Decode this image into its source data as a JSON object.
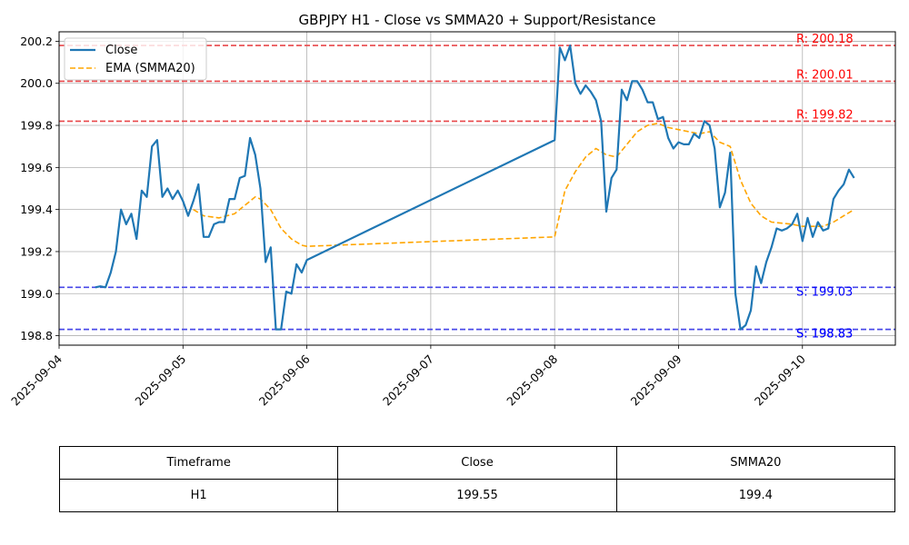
{
  "chart_data": {
    "type": "line",
    "title": "GBPJPY H1 - Close vs SMMA20 + Support/Resistance",
    "xlabel": "",
    "ylabel": "",
    "x_ticks": [
      "2025-09-04",
      "2025-09-05",
      "2025-09-06",
      "2025-09-07",
      "2025-09-08",
      "2025-09-09",
      "2025-09-10"
    ],
    "y_ticks": [
      "198.8",
      "199.0",
      "199.2",
      "199.4",
      "199.6",
      "199.8",
      "200.0",
      "200.2"
    ],
    "xlim": [
      "2025-09-04 00:00",
      "2025-09-10 18:00"
    ],
    "ylim": [
      198.755,
      200.245
    ],
    "grid": true,
    "legend_position": "upper-left",
    "series": [
      {
        "name": "Close",
        "color": "#1f77b4",
        "style": "solid",
        "points": [
          [
            "2025-09-04 07:00",
            199.03
          ],
          [
            "2025-09-04 08:00",
            199.035
          ],
          [
            "2025-09-04 09:00",
            199.03
          ],
          [
            "2025-09-04 10:00",
            199.1
          ],
          [
            "2025-09-04 11:00",
            199.2
          ],
          [
            "2025-09-04 12:00",
            199.4
          ],
          [
            "2025-09-04 13:00",
            199.33
          ],
          [
            "2025-09-04 14:00",
            199.38
          ],
          [
            "2025-09-04 15:00",
            199.26
          ],
          [
            "2025-09-04 16:00",
            199.49
          ],
          [
            "2025-09-04 17:00",
            199.46
          ],
          [
            "2025-09-04 18:00",
            199.7
          ],
          [
            "2025-09-04 19:00",
            199.73
          ],
          [
            "2025-09-04 20:00",
            199.46
          ],
          [
            "2025-09-04 21:00",
            199.5
          ],
          [
            "2025-09-04 22:00",
            199.45
          ],
          [
            "2025-09-04 23:00",
            199.49
          ],
          [
            "2025-09-05 00:00",
            199.44
          ],
          [
            "2025-09-05 01:00",
            199.37
          ],
          [
            "2025-09-05 02:00",
            199.44
          ],
          [
            "2025-09-05 03:00",
            199.52
          ],
          [
            "2025-09-05 04:00",
            199.27
          ],
          [
            "2025-09-05 05:00",
            199.27
          ],
          [
            "2025-09-05 06:00",
            199.33
          ],
          [
            "2025-09-05 07:00",
            199.34
          ],
          [
            "2025-09-05 08:00",
            199.34
          ],
          [
            "2025-09-05 09:00",
            199.45
          ],
          [
            "2025-09-05 10:00",
            199.45
          ],
          [
            "2025-09-05 11:00",
            199.55
          ],
          [
            "2025-09-05 12:00",
            199.56
          ],
          [
            "2025-09-05 13:00",
            199.74
          ],
          [
            "2025-09-05 14:00",
            199.66
          ],
          [
            "2025-09-05 15:00",
            199.5
          ],
          [
            "2025-09-05 16:00",
            199.15
          ],
          [
            "2025-09-05 17:00",
            199.22
          ],
          [
            "2025-09-05 18:00",
            198.83
          ],
          [
            "2025-09-05 19:00",
            198.83
          ],
          [
            "2025-09-05 20:00",
            199.01
          ],
          [
            "2025-09-05 21:00",
            199.0
          ],
          [
            "2025-09-05 22:00",
            199.14
          ],
          [
            "2025-09-05 23:00",
            199.1
          ],
          [
            "2025-09-06 00:00",
            199.16
          ],
          [
            "2025-09-08 00:00",
            199.73
          ],
          [
            "2025-09-08 01:00",
            200.17
          ],
          [
            "2025-09-08 02:00",
            200.11
          ],
          [
            "2025-09-08 03:00",
            200.18
          ],
          [
            "2025-09-08 04:00",
            200.0
          ],
          [
            "2025-09-08 05:00",
            199.95
          ],
          [
            "2025-09-08 06:00",
            199.99
          ],
          [
            "2025-09-08 07:00",
            199.96
          ],
          [
            "2025-09-08 08:00",
            199.92
          ],
          [
            "2025-09-08 09:00",
            199.82
          ],
          [
            "2025-09-08 10:00",
            199.39
          ],
          [
            "2025-09-08 11:00",
            199.55
          ],
          [
            "2025-09-08 12:00",
            199.59
          ],
          [
            "2025-09-08 13:00",
            199.97
          ],
          [
            "2025-09-08 14:00",
            199.92
          ],
          [
            "2025-09-08 15:00",
            200.01
          ],
          [
            "2025-09-08 16:00",
            200.01
          ],
          [
            "2025-09-08 17:00",
            199.97
          ],
          [
            "2025-09-08 18:00",
            199.91
          ],
          [
            "2025-09-08 19:00",
            199.91
          ],
          [
            "2025-09-08 20:00",
            199.83
          ],
          [
            "2025-09-08 21:00",
            199.84
          ],
          [
            "2025-09-08 22:00",
            199.74
          ],
          [
            "2025-09-08 23:00",
            199.69
          ],
          [
            "2025-09-09 00:00",
            199.72
          ],
          [
            "2025-09-09 01:00",
            199.71
          ],
          [
            "2025-09-09 02:00",
            199.71
          ],
          [
            "2025-09-09 03:00",
            199.76
          ],
          [
            "2025-09-09 04:00",
            199.74
          ],
          [
            "2025-09-09 05:00",
            199.82
          ],
          [
            "2025-09-09 06:00",
            199.8
          ],
          [
            "2025-09-09 07:00",
            199.69
          ],
          [
            "2025-09-09 08:00",
            199.41
          ],
          [
            "2025-09-09 09:00",
            199.48
          ],
          [
            "2025-09-09 10:00",
            199.67
          ],
          [
            "2025-09-09 11:00",
            199.0
          ],
          [
            "2025-09-09 12:00",
            198.83
          ],
          [
            "2025-09-09 13:00",
            198.85
          ],
          [
            "2025-09-09 14:00",
            198.92
          ],
          [
            "2025-09-09 15:00",
            199.13
          ],
          [
            "2025-09-09 16:00",
            199.05
          ],
          [
            "2025-09-09 17:00",
            199.15
          ],
          [
            "2025-09-09 18:00",
            199.22
          ],
          [
            "2025-09-09 19:00",
            199.31
          ],
          [
            "2025-09-09 20:00",
            199.3
          ],
          [
            "2025-09-09 21:00",
            199.31
          ],
          [
            "2025-09-09 22:00",
            199.33
          ],
          [
            "2025-09-09 23:00",
            199.38
          ],
          [
            "2025-09-10 00:00",
            199.25
          ],
          [
            "2025-09-10 01:00",
            199.36
          ],
          [
            "2025-09-10 02:00",
            199.27
          ],
          [
            "2025-09-10 03:00",
            199.34
          ],
          [
            "2025-09-10 04:00",
            199.3
          ],
          [
            "2025-09-10 05:00",
            199.31
          ],
          [
            "2025-09-10 06:00",
            199.45
          ],
          [
            "2025-09-10 07:00",
            199.49
          ],
          [
            "2025-09-10 08:00",
            199.52
          ],
          [
            "2025-09-10 09:00",
            199.59
          ],
          [
            "2025-09-10 10:00",
            199.55
          ]
        ]
      },
      {
        "name": "EMA (SMMA20)",
        "color": "#ffa500",
        "style": "dashed",
        "points": [
          [
            "2025-09-05 02:00",
            199.4
          ],
          [
            "2025-09-05 04:00",
            199.37
          ],
          [
            "2025-09-05 07:00",
            199.36
          ],
          [
            "2025-09-05 10:00",
            199.38
          ],
          [
            "2025-09-05 12:00",
            199.42
          ],
          [
            "2025-09-05 14:00",
            199.46
          ],
          [
            "2025-09-05 15:00",
            199.45
          ],
          [
            "2025-09-05 17:00",
            199.4
          ],
          [
            "2025-09-05 19:00",
            199.31
          ],
          [
            "2025-09-05 21:00",
            199.26
          ],
          [
            "2025-09-05 23:00",
            199.23
          ],
          [
            "2025-09-06 00:00",
            199.225
          ],
          [
            "2025-09-08 00:00",
            199.27
          ],
          [
            "2025-09-08 02:00",
            199.49
          ],
          [
            "2025-09-08 04:00",
            199.58
          ],
          [
            "2025-09-08 06:00",
            199.65
          ],
          [
            "2025-09-08 08:00",
            199.69
          ],
          [
            "2025-09-08 10:00",
            199.66
          ],
          [
            "2025-09-08 12:00",
            199.65
          ],
          [
            "2025-09-08 14:00",
            199.71
          ],
          [
            "2025-09-08 16:00",
            199.77
          ],
          [
            "2025-09-08 18:00",
            199.8
          ],
          [
            "2025-09-08 20:00",
            199.81
          ],
          [
            "2025-09-08 22:00",
            199.79
          ],
          [
            "2025-09-09 00:00",
            199.78
          ],
          [
            "2025-09-09 02:00",
            199.77
          ],
          [
            "2025-09-09 04:00",
            199.76
          ],
          [
            "2025-09-09 06:00",
            199.77
          ],
          [
            "2025-09-09 08:00",
            199.72
          ],
          [
            "2025-09-09 10:00",
            199.7
          ],
          [
            "2025-09-09 12:00",
            199.54
          ],
          [
            "2025-09-09 14:00",
            199.43
          ],
          [
            "2025-09-09 16:00",
            199.37
          ],
          [
            "2025-09-09 18:00",
            199.34
          ],
          [
            "2025-09-09 20:00",
            199.335
          ],
          [
            "2025-09-09 22:00",
            199.33
          ],
          [
            "2025-09-10 00:00",
            199.32
          ],
          [
            "2025-09-10 02:00",
            199.32
          ],
          [
            "2025-09-10 04:00",
            199.32
          ],
          [
            "2025-09-10 06:00",
            199.34
          ],
          [
            "2025-09-10 08:00",
            199.37
          ],
          [
            "2025-09-10 10:00",
            199.4
          ]
        ]
      }
    ],
    "levels": [
      {
        "kind": "resistance",
        "value": 200.18,
        "label": "R: 200.18",
        "color": "#ff0000",
        "line_color": "#e8474a"
      },
      {
        "kind": "resistance",
        "value": 200.01,
        "label": "R: 200.01",
        "color": "#ff0000",
        "line_color": "#e8474a"
      },
      {
        "kind": "resistance",
        "value": 199.82,
        "label": "R: 199.82",
        "color": "#ff0000",
        "line_color": "#e8474a"
      },
      {
        "kind": "support",
        "value": 199.03,
        "label": "S: 199.03",
        "color": "#0000ff",
        "line_color": "#4747e8"
      },
      {
        "kind": "support",
        "value": 198.83,
        "label": "S: 198.83",
        "color": "#0000ff",
        "line_color": "#4747e8"
      },
      {
        "kind": "support",
        "value": 198.83,
        "label": "S: 198.83",
        "color": "#0000ff",
        "line_color": "#4747e8"
      }
    ]
  },
  "table": {
    "headers": [
      "Timeframe",
      "Close",
      "SMMA20"
    ],
    "row": [
      "H1",
      "199.55",
      "199.4"
    ]
  }
}
